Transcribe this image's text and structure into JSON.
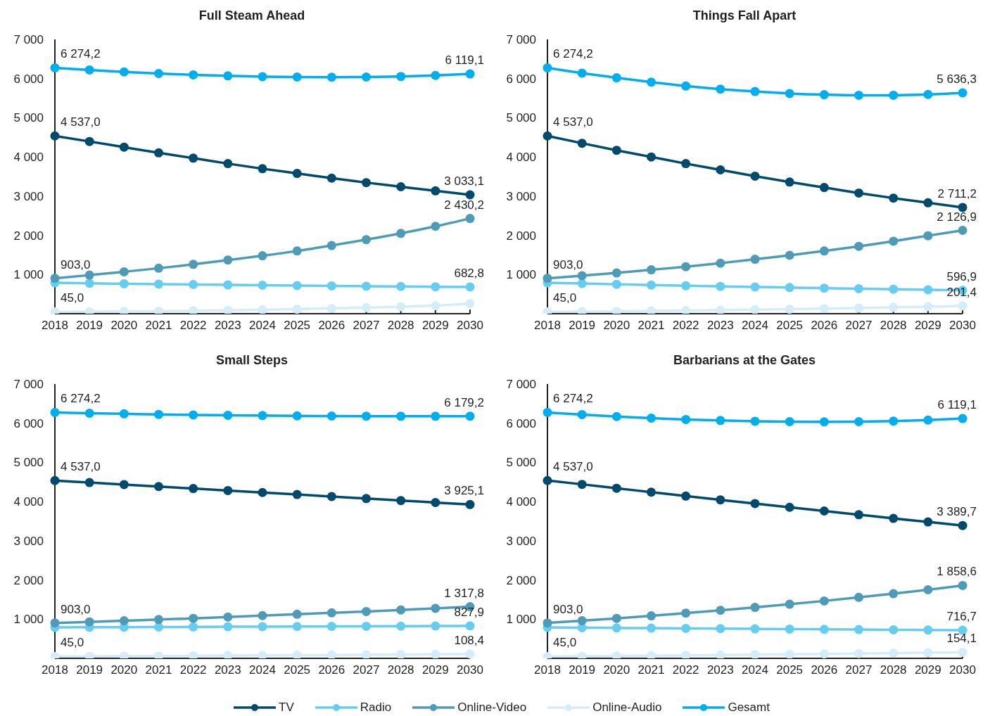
{
  "chart_data": [
    {
      "type": "line",
      "title": "Full Steam Ahead",
      "categories": [
        "2018",
        "2019",
        "2020",
        "2021",
        "2022",
        "2023",
        "2024",
        "2025",
        "2026",
        "2027",
        "2028",
        "2029",
        "2030"
      ],
      "ylim": [
        0,
        7000
      ],
      "yticks": [
        {
          "value": 1000,
          "label": "1 000"
        },
        {
          "value": 2000,
          "label": "2 000"
        },
        {
          "value": 3000,
          "label": "3 000"
        },
        {
          "value": 4000,
          "label": "4 000"
        },
        {
          "value": 5000,
          "label": "5 000"
        },
        {
          "value": 6000,
          "label": "6 000"
        },
        {
          "value": 7000,
          "label": "7 000"
        }
      ],
      "marker": "circle",
      "line_style": "solid",
      "legend": "bottom",
      "series": [
        {
          "name": "TV",
          "color": "#004a6e",
          "values": [
            4537,
            4395,
            4250,
            4105,
            3970,
            3830,
            3700,
            3580,
            3460,
            3345,
            3240,
            3135,
            3033.1
          ],
          "value_labels": [
            "4 537,0",
            null,
            null,
            null,
            null,
            null,
            null,
            null,
            null,
            null,
            null,
            null,
            "3 033,1"
          ]
        },
        {
          "name": "Radio",
          "color": "#66cdf2",
          "values": [
            789.2,
            775,
            765,
            755,
            745,
            735,
            727,
            718,
            710,
            702,
            695,
            688,
            682.8
          ],
          "value_labels": [
            null,
            null,
            null,
            null,
            null,
            null,
            null,
            null,
            null,
            null,
            null,
            null,
            "682,8"
          ]
        },
        {
          "name": "Online-Video",
          "color": "#4e9bb8",
          "values": [
            903,
            985,
            1070,
            1160,
            1260,
            1370,
            1480,
            1600,
            1740,
            1890,
            2050,
            2230,
            2430.2
          ],
          "value_labels": [
            "903,0",
            null,
            null,
            null,
            null,
            null,
            null,
            null,
            null,
            null,
            null,
            null,
            "2 430,2"
          ]
        },
        {
          "name": "Online-Audio",
          "color": "#d4edf9",
          "values": [
            45,
            50,
            57,
            65,
            75,
            87,
            100,
            115,
            135,
            155,
            180,
            205,
            260
          ],
          "value_labels": [
            "45,0",
            null,
            null,
            null,
            null,
            null,
            null,
            null,
            null,
            null,
            null,
            null,
            null
          ]
        },
        {
          "name": "Gesamt",
          "color": "#00aeef",
          "values": [
            6274.2,
            6220,
            6170,
            6130,
            6095,
            6070,
            6050,
            6040,
            6035,
            6040,
            6055,
            6080,
            6119.1
          ],
          "value_labels": [
            "6 274,2",
            null,
            null,
            null,
            null,
            null,
            null,
            null,
            null,
            null,
            null,
            null,
            "6 119,1"
          ]
        }
      ]
    },
    {
      "type": "line",
      "title": "Things Fall Apart",
      "categories": [
        "2018",
        "2019",
        "2020",
        "2021",
        "2022",
        "2023",
        "2024",
        "2025",
        "2026",
        "2027",
        "2028",
        "2029",
        "2030"
      ],
      "ylim": [
        0,
        7000
      ],
      "yticks": [
        {
          "value": 1000,
          "label": "1 000"
        },
        {
          "value": 2000,
          "label": "2 000"
        },
        {
          "value": 3000,
          "label": "3 000"
        },
        {
          "value": 4000,
          "label": "4 000"
        },
        {
          "value": 5000,
          "label": "5 000"
        },
        {
          "value": 6000,
          "label": "6 000"
        },
        {
          "value": 7000,
          "label": "7 000"
        }
      ],
      "marker": "circle",
      "line_style": "solid",
      "legend": "bottom",
      "series": [
        {
          "name": "TV",
          "color": "#004a6e",
          "values": [
            4537,
            4350,
            4170,
            4000,
            3830,
            3670,
            3510,
            3360,
            3220,
            3080,
            2950,
            2830,
            2711.2
          ],
          "value_labels": [
            "4 537,0",
            null,
            null,
            null,
            null,
            null,
            null,
            null,
            null,
            null,
            null,
            null,
            "2 711,2"
          ]
        },
        {
          "name": "Radio",
          "color": "#66cdf2",
          "values": [
            789.2,
            770,
            750,
            730,
            712,
            697,
            682,
            668,
            652,
            638,
            625,
            610,
            596.9
          ],
          "value_labels": [
            null,
            null,
            null,
            null,
            null,
            null,
            null,
            null,
            null,
            null,
            null,
            null,
            "596,9"
          ]
        },
        {
          "name": "Online-Video",
          "color": "#4e9bb8",
          "values": [
            903,
            970,
            1040,
            1120,
            1200,
            1290,
            1390,
            1490,
            1600,
            1720,
            1850,
            1990,
            2126.9
          ],
          "value_labels": [
            "903,0",
            null,
            null,
            null,
            null,
            null,
            null,
            null,
            null,
            null,
            null,
            null,
            "2 126,9"
          ]
        },
        {
          "name": "Online-Audio",
          "color": "#d4edf9",
          "values": [
            45,
            52,
            60,
            70,
            80,
            90,
            102,
            115,
            130,
            145,
            160,
            180,
            201.4
          ],
          "value_labels": [
            "45,0",
            null,
            null,
            null,
            null,
            null,
            null,
            null,
            null,
            null,
            null,
            null,
            "201,4"
          ]
        },
        {
          "name": "Gesamt",
          "color": "#00aeef",
          "values": [
            6274.2,
            6140,
            6020,
            5910,
            5810,
            5730,
            5670,
            5620,
            5590,
            5575,
            5575,
            5595,
            5636.3
          ],
          "value_labels": [
            "6 274,2",
            null,
            null,
            null,
            null,
            null,
            null,
            null,
            null,
            null,
            null,
            null,
            "5 636,3"
          ]
        }
      ]
    },
    {
      "type": "line",
      "title": "Small Steps",
      "categories": [
        "2018",
        "2019",
        "2020",
        "2021",
        "2022",
        "2023",
        "2024",
        "2025",
        "2026",
        "2027",
        "2028",
        "2029",
        "2030"
      ],
      "ylim": [
        0,
        7000
      ],
      "yticks": [
        {
          "value": 1000,
          "label": "1 000"
        },
        {
          "value": 2000,
          "label": "2 000"
        },
        {
          "value": 3000,
          "label": "3 000"
        },
        {
          "value": 4000,
          "label": "4 000"
        },
        {
          "value": 5000,
          "label": "5 000"
        },
        {
          "value": 6000,
          "label": "6 000"
        },
        {
          "value": 7000,
          "label": "7 000"
        }
      ],
      "marker": "circle",
      "line_style": "solid",
      "legend": "bottom",
      "series": [
        {
          "name": "TV",
          "color": "#004a6e",
          "values": [
            4537,
            4486,
            4435,
            4384,
            4333,
            4282,
            4231,
            4180,
            4129,
            4078,
            4027,
            3976,
            3925.1
          ],
          "value_labels": [
            "4 537,0",
            null,
            null,
            null,
            null,
            null,
            null,
            null,
            null,
            null,
            null,
            null,
            "3 925,1"
          ]
        },
        {
          "name": "Radio",
          "color": "#66cdf2",
          "values": [
            789.2,
            792,
            795,
            799,
            802,
            806,
            809,
            812,
            815,
            818,
            821,
            824,
            827.9
          ],
          "value_labels": [
            null,
            null,
            null,
            null,
            null,
            null,
            null,
            null,
            null,
            null,
            null,
            null,
            "827,9"
          ]
        },
        {
          "name": "Online-Video",
          "color": "#4e9bb8",
          "values": [
            903,
            930,
            960,
            990,
            1020,
            1055,
            1090,
            1125,
            1160,
            1195,
            1235,
            1275,
            1317.8
          ],
          "value_labels": [
            "903,0",
            null,
            null,
            null,
            null,
            null,
            null,
            null,
            null,
            null,
            null,
            null,
            "1 317,8"
          ]
        },
        {
          "name": "Online-Audio",
          "color": "#d4edf9",
          "values": [
            45,
            50,
            55,
            60,
            65,
            70,
            75,
            80,
            85,
            90,
            96,
            102,
            108.4
          ],
          "value_labels": [
            "45,0",
            null,
            null,
            null,
            null,
            null,
            null,
            null,
            null,
            null,
            null,
            null,
            "108,4"
          ]
        },
        {
          "name": "Gesamt",
          "color": "#00aeef",
          "values": [
            6274.2,
            6255,
            6240,
            6225,
            6212,
            6202,
            6195,
            6188,
            6183,
            6180,
            6178,
            6178,
            6179.2
          ],
          "value_labels": [
            "6 274,2",
            null,
            null,
            null,
            null,
            null,
            null,
            null,
            null,
            null,
            null,
            null,
            "6 179,2"
          ]
        }
      ]
    },
    {
      "type": "line",
      "title": "Barbarians at the Gates",
      "categories": [
        "2018",
        "2019",
        "2020",
        "2021",
        "2022",
        "2023",
        "2024",
        "2025",
        "2026",
        "2027",
        "2028",
        "2029",
        "2030"
      ],
      "ylim": [
        0,
        7000
      ],
      "yticks": [
        {
          "value": 1000,
          "label": "1 000"
        },
        {
          "value": 2000,
          "label": "2 000"
        },
        {
          "value": 3000,
          "label": "3 000"
        },
        {
          "value": 4000,
          "label": "4 000"
        },
        {
          "value": 5000,
          "label": "5 000"
        },
        {
          "value": 6000,
          "label": "6 000"
        },
        {
          "value": 7000,
          "label": "7 000"
        }
      ],
      "marker": "circle",
      "line_style": "solid",
      "legend": "bottom",
      "series": [
        {
          "name": "TV",
          "color": "#004a6e",
          "values": [
            4537,
            4440,
            4340,
            4240,
            4140,
            4045,
            3950,
            3855,
            3760,
            3665,
            3570,
            3480,
            3389.7
          ],
          "value_labels": [
            "4 537,0",
            null,
            null,
            null,
            null,
            null,
            null,
            null,
            null,
            null,
            null,
            null,
            "3 389,7"
          ]
        },
        {
          "name": "Radio",
          "color": "#66cdf2",
          "values": [
            789.2,
            782,
            776,
            770,
            764,
            758,
            752,
            746,
            740,
            734,
            728,
            722,
            716.7
          ],
          "value_labels": [
            null,
            null,
            null,
            null,
            null,
            null,
            null,
            null,
            null,
            null,
            null,
            null,
            "716,7"
          ]
        },
        {
          "name": "Online-Video",
          "color": "#4e9bb8",
          "values": [
            903,
            960,
            1020,
            1085,
            1155,
            1225,
            1300,
            1380,
            1465,
            1555,
            1650,
            1750,
            1858.6
          ],
          "value_labels": [
            "903,0",
            null,
            null,
            null,
            null,
            null,
            null,
            null,
            null,
            null,
            null,
            null,
            "1 858,6"
          ]
        },
        {
          "name": "Online-Audio",
          "color": "#d4edf9",
          "values": [
            45,
            52,
            60,
            68,
            76,
            84,
            93,
            102,
            112,
            122,
            132,
            143,
            154.1
          ],
          "value_labels": [
            "45,0",
            null,
            null,
            null,
            null,
            null,
            null,
            null,
            null,
            null,
            null,
            null,
            "154,1"
          ]
        },
        {
          "name": "Gesamt",
          "color": "#00aeef",
          "values": [
            6274.2,
            6220,
            6170,
            6130,
            6095,
            6070,
            6050,
            6040,
            6035,
            6040,
            6055,
            6080,
            6119.1
          ],
          "value_labels": [
            "6 274,2",
            null,
            null,
            null,
            null,
            null,
            null,
            null,
            null,
            null,
            null,
            null,
            "6 119,1"
          ]
        }
      ]
    }
  ]
}
